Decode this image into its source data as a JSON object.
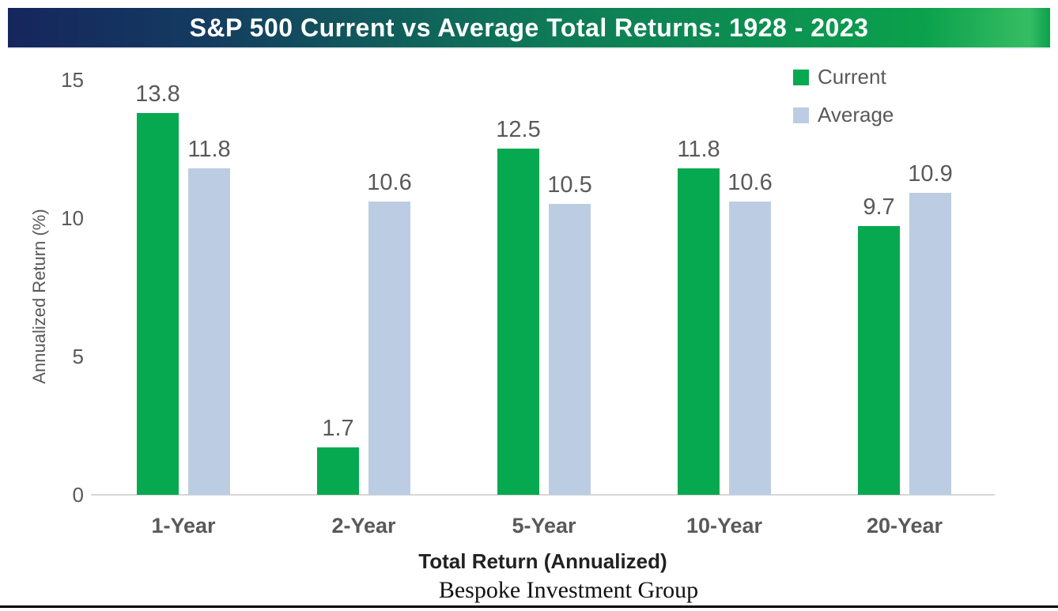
{
  "header": {
    "title": "S&P 500 Current vs Average Total Returns: 1928 - 2023",
    "gradient_left_color": "#15265d",
    "gradient_right_color": "#0ba14c"
  },
  "footer": {
    "source": "Bespoke Investment Group"
  },
  "chart_data": {
    "type": "bar",
    "title": "S&P 500 Current vs Average Total Returns: 1928 - 2023",
    "categories": [
      "1-Year",
      "2-Year",
      "5-Year",
      "10-Year",
      "20-Year"
    ],
    "series": [
      {
        "name": "Current",
        "color": "#06a94f",
        "values": [
          13.8,
          1.7,
          12.5,
          11.8,
          9.7
        ]
      },
      {
        "name": "Average",
        "color": "#bccde3",
        "values": [
          11.8,
          10.6,
          10.5,
          10.6,
          10.9
        ]
      }
    ],
    "xlabel": "Total Return (Annualized)",
    "ylabel": "Annualized Return (%)",
    "ylim": [
      0,
      15
    ],
    "yticks": [
      0,
      5,
      10,
      15
    ],
    "grid": false,
    "legend_position": "top-right",
    "value_labels": true,
    "value_label_color": "#595959",
    "axis_text_color": "#595959",
    "axis_line_color": "#d6d6d6"
  }
}
